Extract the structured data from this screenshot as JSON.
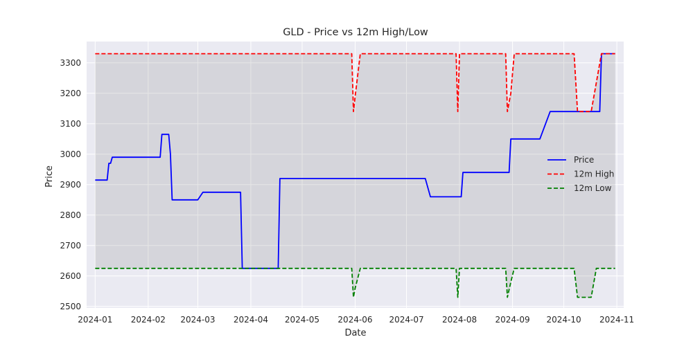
{
  "chart_data": {
    "type": "line",
    "title": "GLD - Price vs 12m High/Low",
    "xlabel": "Date",
    "ylabel": "Price",
    "xlim": [
      "2023-12-27",
      "2024-11-05"
    ],
    "ylim": [
      2495,
      3370
    ],
    "x_ticks": [
      "2024-01-01",
      "2024-02-01",
      "2024-03-01",
      "2024-04-01",
      "2024-05-01",
      "2024-06-01",
      "2024-07-01",
      "2024-08-01",
      "2024-09-01",
      "2024-10-01",
      "2024-11-01"
    ],
    "x_tick_labels": [
      "2024-01",
      "2024-02",
      "2024-03",
      "2024-04",
      "2024-05",
      "2024-06",
      "2024-07",
      "2024-08",
      "2024-09",
      "2024-10",
      "2024-11"
    ],
    "y_ticks": [
      2500,
      2600,
      2700,
      2800,
      2900,
      3000,
      3100,
      3200,
      3300
    ],
    "y_tick_labels": [
      "2500",
      "2600",
      "2700",
      "2800",
      "2900",
      "3000",
      "3100",
      "3200",
      "3300"
    ],
    "grid": true,
    "shaded_band": {
      "between": [
        "12m High",
        "12m Low"
      ],
      "color": "#808080"
    },
    "legend": {
      "position": "center-right",
      "entries": [
        "Price",
        "12m High",
        "12m Low"
      ]
    },
    "series": [
      {
        "name": "Price",
        "color": "#0000ff",
        "style": "solid",
        "points": [
          [
            "2024-01-01",
            2915
          ],
          [
            "2024-01-08",
            2915
          ],
          [
            "2024-01-09",
            2970
          ],
          [
            "2024-01-10",
            2970
          ],
          [
            "2024-01-11",
            2990
          ],
          [
            "2024-02-08",
            2990
          ],
          [
            "2024-02-09",
            3065
          ],
          [
            "2024-02-13",
            3065
          ],
          [
            "2024-02-14",
            3000
          ],
          [
            "2024-02-15",
            2850
          ],
          [
            "2024-03-01",
            2850
          ],
          [
            "2024-03-04",
            2875
          ],
          [
            "2024-03-26",
            2875
          ],
          [
            "2024-03-27",
            2625
          ],
          [
            "2024-04-17",
            2625
          ],
          [
            "2024-04-18",
            2920
          ],
          [
            "2024-07-12",
            2920
          ],
          [
            "2024-07-15",
            2860
          ],
          [
            "2024-08-02",
            2860
          ],
          [
            "2024-08-03",
            2940
          ],
          [
            "2024-08-30",
            2940
          ],
          [
            "2024-08-31",
            3050
          ],
          [
            "2024-09-17",
            3050
          ],
          [
            "2024-09-23",
            3140
          ],
          [
            "2024-10-22",
            3140
          ],
          [
            "2024-10-23",
            3330
          ],
          [
            "2024-10-31",
            3330
          ]
        ]
      },
      {
        "name": "12m High",
        "color": "#ff0000",
        "style": "dashed",
        "points": [
          [
            "2024-01-01",
            3330
          ],
          [
            "2024-05-30",
            3330
          ],
          [
            "2024-05-31",
            3140
          ],
          [
            "2024-06-01",
            3190
          ],
          [
            "2024-06-04",
            3330
          ],
          [
            "2024-07-30",
            3330
          ],
          [
            "2024-07-31",
            3140
          ],
          [
            "2024-08-01",
            3330
          ],
          [
            "2024-08-28",
            3330
          ],
          [
            "2024-08-29",
            3140
          ],
          [
            "2024-08-31",
            3200
          ],
          [
            "2024-09-02",
            3330
          ],
          [
            "2024-10-07",
            3330
          ],
          [
            "2024-10-09",
            3140
          ],
          [
            "2024-10-17",
            3140
          ],
          [
            "2024-10-23",
            3330
          ],
          [
            "2024-10-31",
            3330
          ]
        ]
      },
      {
        "name": "12m Low",
        "color": "#008000",
        "style": "dashed",
        "points": [
          [
            "2024-01-01",
            2625
          ],
          [
            "2024-05-30",
            2625
          ],
          [
            "2024-05-31",
            2530
          ],
          [
            "2024-06-01",
            2560
          ],
          [
            "2024-06-04",
            2625
          ],
          [
            "2024-07-30",
            2625
          ],
          [
            "2024-07-31",
            2530
          ],
          [
            "2024-08-01",
            2625
          ],
          [
            "2024-08-28",
            2625
          ],
          [
            "2024-08-29",
            2530
          ],
          [
            "2024-08-31",
            2580
          ],
          [
            "2024-09-02",
            2625
          ],
          [
            "2024-10-07",
            2625
          ],
          [
            "2024-10-09",
            2530
          ],
          [
            "2024-10-17",
            2530
          ],
          [
            "2024-10-20",
            2625
          ],
          [
            "2024-10-31",
            2625
          ]
        ]
      }
    ]
  }
}
